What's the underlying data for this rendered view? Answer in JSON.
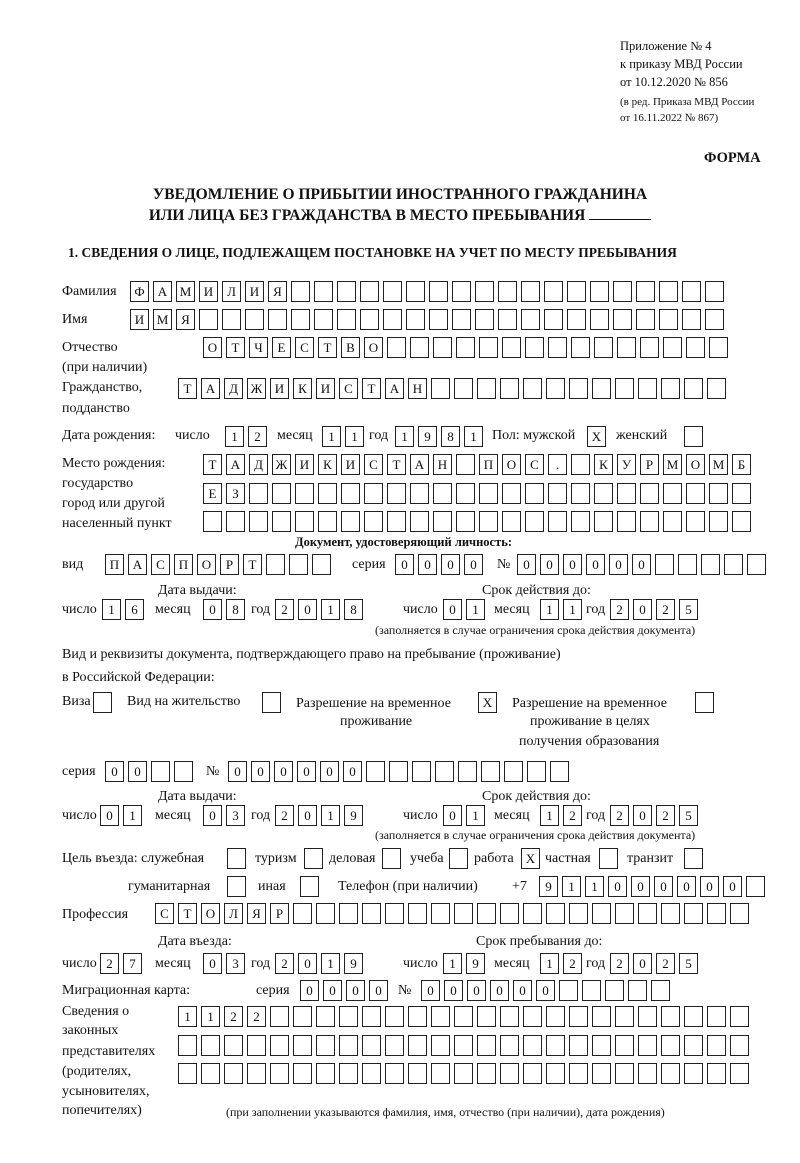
{
  "header": {
    "appendix_line1": "Приложение № 4",
    "appendix_line2": "к приказу МВД России",
    "appendix_line3": "от 10.12.2020 № 856",
    "revision_line1": "(в ред. Приказа МВД России",
    "revision_line2": "от 16.11.2022 № 867)",
    "form_label": "ФОРМА",
    "title_line1": "УВЕДОМЛЕНИЕ О ПРИБЫТИИ ИНОСТРАННОГО ГРАЖДАНИНА",
    "title_line2": "ИЛИ ЛИЦА БЕЗ ГРАЖДАНСТВА В МЕСТО ПРЕБЫВАНИЯ",
    "section1_title": "1. СВЕДЕНИЯ О ЛИЦЕ, ПОДЛЕЖАЩЕМ ПОСТАНОВКЕ НА УЧЕТ ПО МЕСТУ ПРЕБЫВАНИЯ"
  },
  "labels": {
    "surname": "Фамилия",
    "name": "Имя",
    "patronymic": "Отчество",
    "patronymic_note": "(при наличии)",
    "citizenship1": "Гражданство,",
    "citizenship2": "подданство",
    "birth_date": "Дата рождения:",
    "day": "число",
    "month": "месяц",
    "year": "год",
    "sex": "Пол: мужской",
    "female": "женский",
    "birth_place1": "Место рождения:",
    "birth_place2": "государство",
    "birth_place3": "город или другой",
    "birth_place4": "населенный пункт",
    "id_doc": "Документ, удостоверяющий личность:",
    "kind": "вид",
    "series": "серия",
    "number_sign": "№",
    "issue_date": "Дата выдачи:",
    "valid_until": "Срок действия до:",
    "validity_note": "(заполняется в случае ограничения срока действия документа)",
    "right_doc1": "Вид и реквизиты документа, подтверждающего право на пребывание (проживание)",
    "right_doc2": "в Российской Федерации:",
    "visa": "Виза",
    "residence_permit": "Вид на жительство",
    "temp_residence1": "Разрешение на временное",
    "temp_residence2": "проживание",
    "temp_edu1": "Разрешение на временное",
    "temp_edu2": "проживание в целях",
    "temp_edu3": "получения образования",
    "purpose": "Цель въезда: служебная",
    "tourism": "туризм",
    "business": "деловая",
    "study": "учеба",
    "work": "работа",
    "private": "частная",
    "transit": "транзит",
    "humanitarian": "гуманитарная",
    "other": "иная",
    "phone": "Телефон (при наличии)",
    "phone_prefix": "+7",
    "profession": "Профессия",
    "entry_date": "Дата въезда:",
    "stay_until": "Срок пребывания до:",
    "migration_card": "Миграционная карта:",
    "reps1": "Сведения о",
    "reps2": "законных",
    "reps3": "представителях",
    "reps4": "(родителях,",
    "reps5": "усыновителях,",
    "reps6": "попечителях)",
    "reps_note": "(при заполнении указываются фамилия, имя, отчество (при наличии), дата рождения)"
  },
  "values": {
    "surname": "ФАМИЛИЯ",
    "name": "ИМЯ",
    "patronymic": "ОТЧЕСТВО",
    "citizenship": "ТАДЖИКИСТАН",
    "birth_day": "12",
    "birth_month": "11",
    "birth_year": "1981",
    "sex_male": "X",
    "sex_female": "",
    "birth_place_line1": "ТАДЖИКИСТАН ПОС. КУРМОМБ",
    "birth_place_line2": "ЕЗ",
    "birth_place_line3": "",
    "id_kind": "ПАСПОРТ",
    "id_series": "0000",
    "id_number": "000000",
    "id_issue_day": "16",
    "id_issue_month": "08",
    "id_issue_year": "2018",
    "id_valid_day": "01",
    "id_valid_month": "11",
    "id_valid_year": "2025",
    "visa": "",
    "residence_permit": "",
    "temp_residence": "X",
    "temp_edu": "",
    "right_series": "00",
    "right_number": "000000",
    "right_issue_day": "01",
    "right_issue_month": "03",
    "right_issue_year": "2019",
    "right_valid_day": "01",
    "right_valid_month": "12",
    "right_valid_year": "2025",
    "purpose_official": "",
    "purpose_tourism": "",
    "purpose_business": "",
    "purpose_study": "",
    "purpose_work": "X",
    "purpose_private": "",
    "purpose_transit": "",
    "purpose_humanitarian": "",
    "purpose_other": "",
    "phone": "911000000",
    "profession": "СТОЛЯР",
    "entry_day": "27",
    "entry_month": "03",
    "entry_year": "2019",
    "stay_day": "19",
    "stay_month": "12",
    "stay_year": "2025",
    "mig_series": "0000",
    "mig_number": "000000",
    "reps_line1": "1122",
    "reps_line2": "",
    "reps_line3": ""
  }
}
